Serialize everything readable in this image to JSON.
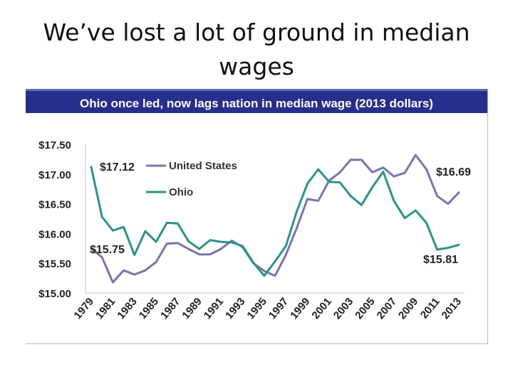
{
  "slide": {
    "title": "We’ve lost a lot of ground in median wages"
  },
  "chart_data": {
    "type": "line",
    "title": "Ohio once led, now lags nation in median wage (2013 dollars)",
    "x": [
      1979,
      1980,
      1981,
      1982,
      1983,
      1984,
      1985,
      1986,
      1987,
      1988,
      1989,
      1990,
      1991,
      1992,
      1993,
      1994,
      1995,
      1996,
      1997,
      1998,
      1999,
      2000,
      2001,
      2002,
      2003,
      2004,
      2005,
      2006,
      2007,
      2008,
      2009,
      2010,
      2011,
      2012,
      2013
    ],
    "x_tick_labels": [
      "1979",
      "1981",
      "1983",
      "1985",
      "1987",
      "1989",
      "1991",
      "1993",
      "1995",
      "1997",
      "1999",
      "2001",
      "2003",
      "2005",
      "2007",
      "2009",
      "2011",
      "2013"
    ],
    "ylim": [
      15.0,
      17.5
    ],
    "y_tick_labels": [
      "$17.50",
      "$17.00",
      "$16.50",
      "$16.00",
      "$15.50",
      "$15.00"
    ],
    "y_ticks": [
      17.5,
      17.0,
      16.5,
      16.0,
      15.5,
      15.0
    ],
    "grid": false,
    "legend_position": "top-left",
    "series": [
      {
        "name": "United States",
        "color": "#7b72b3",
        "values": [
          15.75,
          15.6,
          15.18,
          15.38,
          15.31,
          15.38,
          15.52,
          15.83,
          15.84,
          15.74,
          15.65,
          15.65,
          15.74,
          15.88,
          15.77,
          15.5,
          15.37,
          15.29,
          15.64,
          16.09,
          16.58,
          16.55,
          16.89,
          17.03,
          17.24,
          17.24,
          17.03,
          17.11,
          16.96,
          17.02,
          17.32,
          17.08,
          16.63,
          16.5,
          16.69
        ]
      },
      {
        "name": "Ohio",
        "color": "#2a9488",
        "values": [
          17.12,
          16.28,
          16.05,
          16.11,
          15.64,
          16.04,
          15.86,
          16.18,
          16.17,
          15.87,
          15.74,
          15.89,
          15.86,
          15.85,
          15.79,
          15.51,
          15.29,
          15.53,
          15.79,
          16.37,
          16.84,
          17.08,
          16.87,
          16.86,
          16.63,
          16.48,
          16.78,
          17.04,
          16.55,
          16.26,
          16.39,
          16.18,
          15.73,
          15.76,
          15.81
        ]
      }
    ],
    "annotations": {
      "oh_start": "$17.12",
      "us_start": "$15.75",
      "us_end": "$16.69",
      "oh_end": "$15.81"
    }
  }
}
